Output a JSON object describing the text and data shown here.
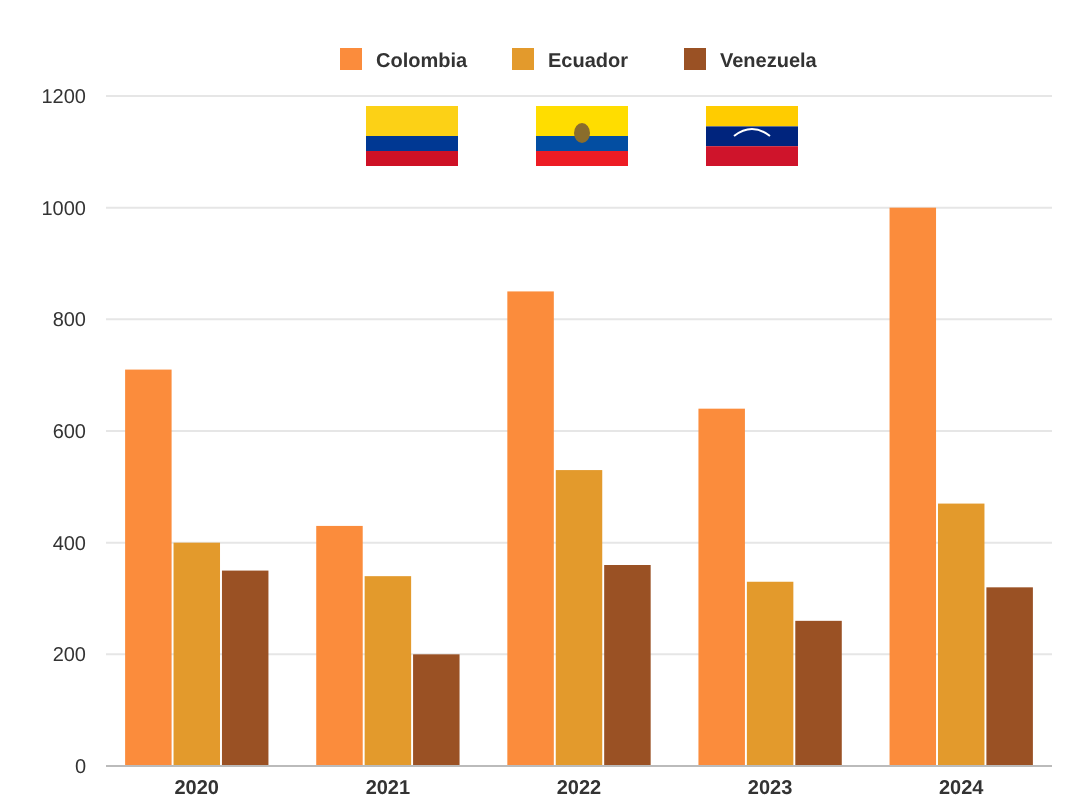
{
  "chart_data": {
    "type": "bar",
    "categories": [
      "2020",
      "2021",
      "2022",
      "2023",
      "2024"
    ],
    "series": [
      {
        "name": "Colombia",
        "color": "#fb8c3c",
        "values": [
          710,
          430,
          850,
          640,
          1000
        ]
      },
      {
        "name": "Ecuador",
        "color": "#e39a2c",
        "values": [
          400,
          340,
          530,
          330,
          470
        ]
      },
      {
        "name": "Venezuela",
        "color": "#9a5124",
        "values": [
          350,
          200,
          360,
          260,
          320
        ]
      }
    ],
    "ylim": [
      0,
      1200
    ],
    "yticks": [
      0,
      200,
      400,
      600,
      800,
      1000,
      1200
    ],
    "grid": "y",
    "legend": "top"
  }
}
